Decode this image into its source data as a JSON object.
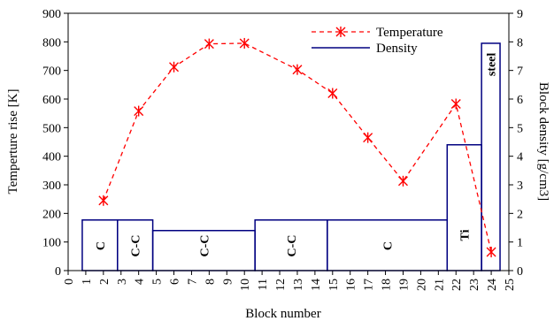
{
  "chart_data": {
    "type": "line",
    "xlabel": "Block number",
    "ylabel_left": "Temperture rise [K]",
    "ylabel_right": "Block density [g/cm3]",
    "xlim": [
      0,
      25
    ],
    "ylim_left": [
      0,
      900
    ],
    "ylim_right": [
      0,
      9
    ],
    "x_ticks": [
      "0",
      "1",
      "2",
      "3",
      "4",
      "5",
      "6",
      "7",
      "8",
      "9",
      "10",
      "11",
      "12",
      "13",
      "14",
      "15",
      "16",
      "17",
      "18",
      "19",
      "20",
      "21",
      "22",
      "23",
      "24",
      "25"
    ],
    "y_left_ticks": [
      "0",
      "100",
      "200",
      "300",
      "400",
      "500",
      "600",
      "700",
      "800",
      "900"
    ],
    "y_right_ticks": [
      "0",
      "1",
      "2",
      "3",
      "4",
      "5",
      "6",
      "7",
      "8",
      "9"
    ],
    "legend_position": "top-right",
    "series": [
      {
        "name": "Temperature",
        "axis": "left",
        "style": "dashed-line-star-markers",
        "color": "#ff0000",
        "x": [
          2,
          4,
          6,
          8,
          10,
          13,
          15,
          17,
          19,
          22,
          24
        ],
        "y": [
          245,
          558,
          712,
          793,
          795,
          703,
          620,
          465,
          313,
          583,
          65
        ]
      },
      {
        "name": "Density",
        "axis": "right",
        "style": "step-blocks",
        "color": "#000080",
        "blocks": [
          {
            "x0": 0.8,
            "x1": 2.8,
            "density": 1.77,
            "label": "C"
          },
          {
            "x0": 2.8,
            "x1": 4.8,
            "density": 1.77,
            "label": "C-C"
          },
          {
            "x0": 4.8,
            "x1": 10.6,
            "density": 1.4,
            "label": "C-C"
          },
          {
            "x0": 10.6,
            "x1": 14.7,
            "density": 1.77,
            "label": "C-C"
          },
          {
            "x0": 14.7,
            "x1": 21.5,
            "density": 1.77,
            "label": "C"
          },
          {
            "x0": 21.5,
            "x1": 23.45,
            "density": 4.4,
            "label": "Ti"
          },
          {
            "x0": 23.45,
            "x1": 24.5,
            "density": 7.95,
            "label": "steel"
          }
        ]
      }
    ]
  }
}
